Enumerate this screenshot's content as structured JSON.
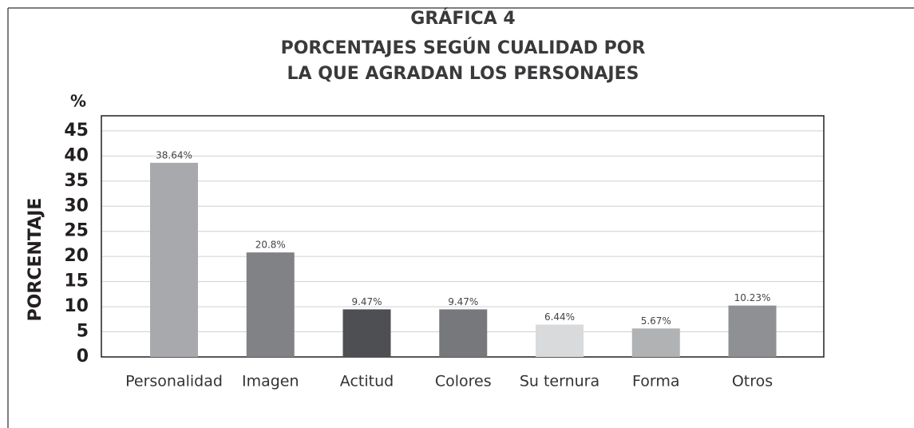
{
  "chart_data": {
    "type": "bar",
    "title": [
      "GRÁFICA 4",
      "PORCENTAJES SEGÚN CUALIDAD POR",
      "LA QUE AGRADAN LOS PERSONAJES"
    ],
    "y_label": "PORCENTAJE",
    "y_unit": "%",
    "categories": [
      "Personalidad",
      "Imagen",
      "Actitud",
      "Colores",
      "Su ternura",
      "Forma",
      "Otros"
    ],
    "values": [
      38.64,
      20.8,
      9.47,
      9.47,
      6.44,
      5.67,
      10.23
    ],
    "value_labels": [
      "38.64%",
      "20.8%",
      "9.47%",
      "9.47%",
      "6.44%",
      "5.67%",
      "10.23%"
    ],
    "colors": [
      "#a7a9ac",
      "#808285",
      "#4d4f52",
      "#77787b",
      "#d9dadb",
      "#b1b2b4",
      "#8f9093"
    ],
    "ylim": [
      0,
      48
    ],
    "yticks": [
      0,
      5,
      10,
      15,
      20,
      25,
      30,
      35,
      40,
      45
    ],
    "grid": true
  }
}
